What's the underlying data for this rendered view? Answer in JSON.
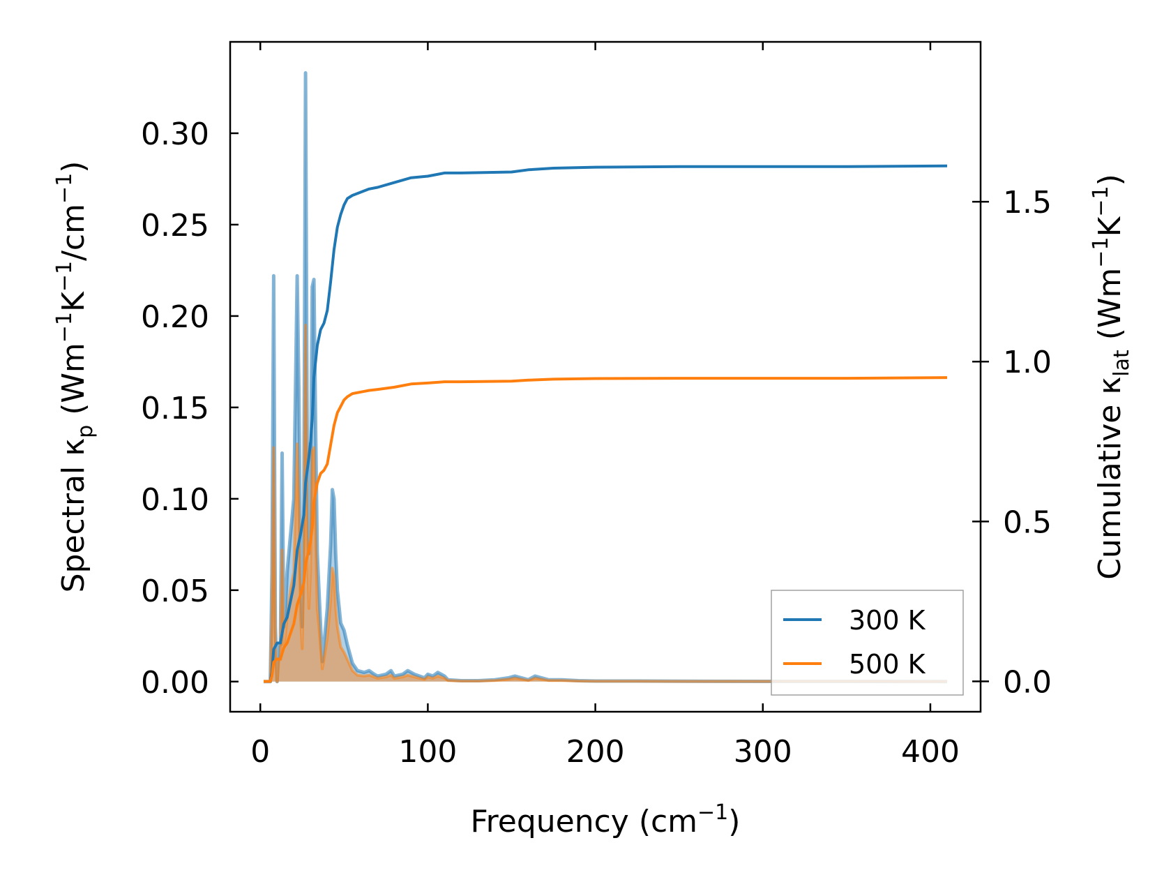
{
  "chart_data": {
    "type": "line",
    "xlabel": {
      "base": "Frequency (cm",
      "sup": "−1",
      "end": ")"
    },
    "ylabel_left": {
      "pre": "Spectral κ",
      "sub": "p",
      "mid": " (Wm",
      "sup1": "−1",
      "k": "K",
      "sup2": "−1",
      "cm": "/cm",
      "sup3": "−1",
      "end": ")"
    },
    "ylabel_right": {
      "pre": "Cumulative κ",
      "sub": "lat",
      "mid": " (Wm",
      "sup1": "−1",
      "k": "K",
      "sup2": "−1",
      "end": ")"
    },
    "xlim": [
      -18,
      430
    ],
    "ylim_left": [
      -0.0165,
      0.35
    ],
    "ylim_right": [
      -0.095,
      2.0
    ],
    "x_ticks": [
      0,
      100,
      200,
      300,
      400
    ],
    "x_tick_labels": [
      "0",
      "100",
      "200",
      "300",
      "400"
    ],
    "y_left_ticks": [
      0.0,
      0.05,
      0.1,
      0.15,
      0.2,
      0.25,
      0.3
    ],
    "y_left_tick_labels": [
      "0.00",
      "0.05",
      "0.10",
      "0.15",
      "0.20",
      "0.25",
      "0.30"
    ],
    "y_right_ticks": [
      0.0,
      0.5,
      1.0,
      1.5
    ],
    "y_right_tick_labels": [
      "0.0",
      "0.5",
      "1.0",
      "1.5"
    ],
    "legend": {
      "placement": "lower-right",
      "entries": [
        "300 K",
        "500 K"
      ]
    },
    "colors": {
      "300 K": "#1f77b4",
      "500 K": "#ff7f0e"
    },
    "spectral_300K": [
      [
        2,
        0
      ],
      [
        4,
        0
      ],
      [
        6,
        0
      ],
      [
        7,
        0.06
      ],
      [
        8,
        0.222
      ],
      [
        9,
        0.03
      ],
      [
        10,
        0
      ],
      [
        11,
        0.02
      ],
      [
        12,
        0.02
      ],
      [
        13,
        0.125
      ],
      [
        14,
        0.03
      ],
      [
        15,
        0.04
      ],
      [
        16,
        0.06
      ],
      [
        18,
        0.08
      ],
      [
        20,
        0.1
      ],
      [
        21,
        0.16
      ],
      [
        22,
        0.222
      ],
      [
        23,
        0.16
      ],
      [
        24,
        0.06
      ],
      [
        25,
        0.03
      ],
      [
        26,
        0.1
      ],
      [
        27,
        0.333
      ],
      [
        28,
        0.13
      ],
      [
        29,
        0.07
      ],
      [
        30,
        0.1
      ],
      [
        31,
        0.216
      ],
      [
        32,
        0.22
      ],
      [
        33,
        0.14
      ],
      [
        34,
        0.07
      ],
      [
        35,
        0.05
      ],
      [
        36,
        0.03
      ],
      [
        37,
        0.011
      ],
      [
        38,
        0.02
      ],
      [
        40,
        0.04
      ],
      [
        42,
        0.075
      ],
      [
        43,
        0.105
      ],
      [
        44,
        0.1
      ],
      [
        45,
        0.07
      ],
      [
        46,
        0.05
      ],
      [
        48,
        0.032
      ],
      [
        50,
        0.028
      ],
      [
        52,
        0.02
      ],
      [
        55,
        0.01
      ],
      [
        58,
        0.006
      ],
      [
        62,
        0.005
      ],
      [
        65,
        0.006
      ],
      [
        68,
        0.004
      ],
      [
        70,
        0.003
      ],
      [
        75,
        0.004
      ],
      [
        78,
        0.006
      ],
      [
        80,
        0.003
      ],
      [
        85,
        0.004
      ],
      [
        88,
        0.006
      ],
      [
        92,
        0.004
      ],
      [
        95,
        0.003
      ],
      [
        98,
        0.002
      ],
      [
        100,
        0.004
      ],
      [
        103,
        0.003
      ],
      [
        106,
        0.005
      ],
      [
        110,
        0.003
      ],
      [
        112,
        0.001
      ],
      [
        120,
        0.0005
      ],
      [
        130,
        0.0005
      ],
      [
        140,
        0.001
      ],
      [
        148,
        0.002
      ],
      [
        152,
        0.003
      ],
      [
        156,
        0.002
      ],
      [
        160,
        0.001
      ],
      [
        164,
        0.003
      ],
      [
        168,
        0.002
      ],
      [
        172,
        0.001
      ],
      [
        180,
        0.001
      ],
      [
        190,
        0.0005
      ],
      [
        200,
        0.0003
      ],
      [
        225,
        0.0003
      ],
      [
        250,
        0.0002
      ],
      [
        300,
        0.0001
      ],
      [
        350,
        0.0001
      ],
      [
        410,
        0
      ]
    ],
    "spectral_500K": [
      [
        2,
        0
      ],
      [
        4,
        0
      ],
      [
        6,
        0
      ],
      [
        7,
        0.04
      ],
      [
        8,
        0.128
      ],
      [
        9,
        0.02
      ],
      [
        10,
        0
      ],
      [
        11,
        0.012
      ],
      [
        12,
        0.012
      ],
      [
        13,
        0.072
      ],
      [
        14,
        0.02
      ],
      [
        15,
        0.025
      ],
      [
        16,
        0.035
      ],
      [
        18,
        0.05
      ],
      [
        20,
        0.06
      ],
      [
        21,
        0.095
      ],
      [
        22,
        0.13
      ],
      [
        23,
        0.095
      ],
      [
        24,
        0.035
      ],
      [
        25,
        0.018
      ],
      [
        26,
        0.06
      ],
      [
        27,
        0.195
      ],
      [
        28,
        0.076
      ],
      [
        29,
        0.04
      ],
      [
        30,
        0.06
      ],
      [
        31,
        0.126
      ],
      [
        32,
        0.128
      ],
      [
        33,
        0.08
      ],
      [
        34,
        0.04
      ],
      [
        35,
        0.03
      ],
      [
        36,
        0.018
      ],
      [
        37,
        0.007
      ],
      [
        38,
        0.012
      ],
      [
        40,
        0.024
      ],
      [
        42,
        0.044
      ],
      [
        43,
        0.062
      ],
      [
        44,
        0.058
      ],
      [
        45,
        0.04
      ],
      [
        46,
        0.03
      ],
      [
        48,
        0.019
      ],
      [
        50,
        0.016
      ],
      [
        52,
        0.012
      ],
      [
        55,
        0.006
      ],
      [
        58,
        0.0035
      ],
      [
        62,
        0.003
      ],
      [
        65,
        0.0035
      ],
      [
        68,
        0.0025
      ],
      [
        70,
        0.0018
      ],
      [
        75,
        0.0025
      ],
      [
        78,
        0.0035
      ],
      [
        80,
        0.0018
      ],
      [
        85,
        0.0025
      ],
      [
        88,
        0.0035
      ],
      [
        92,
        0.0025
      ],
      [
        95,
        0.0018
      ],
      [
        98,
        0.0012
      ],
      [
        100,
        0.0025
      ],
      [
        103,
        0.0018
      ],
      [
        106,
        0.003
      ],
      [
        110,
        0.0018
      ],
      [
        112,
        0.0006
      ],
      [
        120,
        0.0003
      ],
      [
        130,
        0.0003
      ],
      [
        140,
        0.0006
      ],
      [
        148,
        0.0012
      ],
      [
        152,
        0.0018
      ],
      [
        156,
        0.0012
      ],
      [
        160,
        0.0006
      ],
      [
        164,
        0.0018
      ],
      [
        168,
        0.0012
      ],
      [
        172,
        0.0006
      ],
      [
        180,
        0.0006
      ],
      [
        190,
        0.0003
      ],
      [
        200,
        0.0002
      ],
      [
        225,
        0.0002
      ],
      [
        250,
        0.0001
      ],
      [
        300,
        0.0001
      ],
      [
        350,
        0.0001
      ],
      [
        410,
        0
      ]
    ],
    "cumulative_300K": [
      [
        2,
        0
      ],
      [
        6,
        0
      ],
      [
        7,
        0.03
      ],
      [
        8,
        0.1
      ],
      [
        10,
        0.12
      ],
      [
        12,
        0.12
      ],
      [
        14,
        0.18
      ],
      [
        16,
        0.2
      ],
      [
        18,
        0.25
      ],
      [
        20,
        0.3
      ],
      [
        22,
        0.41
      ],
      [
        24,
        0.46
      ],
      [
        26,
        0.52
      ],
      [
        27,
        0.62
      ],
      [
        28,
        0.66
      ],
      [
        29,
        0.7
      ],
      [
        30,
        0.75
      ],
      [
        31,
        0.82
      ],
      [
        32,
        0.95
      ],
      [
        34,
        1.05
      ],
      [
        36,
        1.1
      ],
      [
        38,
        1.12
      ],
      [
        40,
        1.16
      ],
      [
        42,
        1.25
      ],
      [
        44,
        1.35
      ],
      [
        46,
        1.42
      ],
      [
        48,
        1.46
      ],
      [
        50,
        1.49
      ],
      [
        52,
        1.51
      ],
      [
        55,
        1.52
      ],
      [
        60,
        1.53
      ],
      [
        65,
        1.54
      ],
      [
        70,
        1.545
      ],
      [
        80,
        1.56
      ],
      [
        90,
        1.575
      ],
      [
        100,
        1.58
      ],
      [
        110,
        1.59
      ],
      [
        120,
        1.59
      ],
      [
        150,
        1.593
      ],
      [
        160,
        1.6
      ],
      [
        175,
        1.605
      ],
      [
        200,
        1.608
      ],
      [
        250,
        1.61
      ],
      [
        300,
        1.61
      ],
      [
        350,
        1.61
      ],
      [
        410,
        1.612
      ]
    ],
    "cumulative_500K": [
      [
        2,
        0
      ],
      [
        6,
        0
      ],
      [
        7,
        0.018
      ],
      [
        8,
        0.06
      ],
      [
        10,
        0.07
      ],
      [
        12,
        0.07
      ],
      [
        14,
        0.105
      ],
      [
        16,
        0.12
      ],
      [
        18,
        0.15
      ],
      [
        20,
        0.18
      ],
      [
        22,
        0.24
      ],
      [
        24,
        0.27
      ],
      [
        26,
        0.31
      ],
      [
        27,
        0.365
      ],
      [
        28,
        0.39
      ],
      [
        29,
        0.41
      ],
      [
        30,
        0.44
      ],
      [
        31,
        0.48
      ],
      [
        32,
        0.56
      ],
      [
        34,
        0.62
      ],
      [
        36,
        0.65
      ],
      [
        38,
        0.66
      ],
      [
        40,
        0.68
      ],
      [
        42,
        0.74
      ],
      [
        44,
        0.8
      ],
      [
        46,
        0.84
      ],
      [
        48,
        0.86
      ],
      [
        50,
        0.88
      ],
      [
        52,
        0.89
      ],
      [
        55,
        0.9
      ],
      [
        60,
        0.905
      ],
      [
        65,
        0.91
      ],
      [
        70,
        0.913
      ],
      [
        80,
        0.92
      ],
      [
        90,
        0.93
      ],
      [
        100,
        0.933
      ],
      [
        110,
        0.937
      ],
      [
        120,
        0.937
      ],
      [
        150,
        0.939
      ],
      [
        160,
        0.942
      ],
      [
        175,
        0.945
      ],
      [
        200,
        0.947
      ],
      [
        250,
        0.948
      ],
      [
        300,
        0.948
      ],
      [
        350,
        0.948
      ],
      [
        410,
        0.95
      ]
    ]
  }
}
